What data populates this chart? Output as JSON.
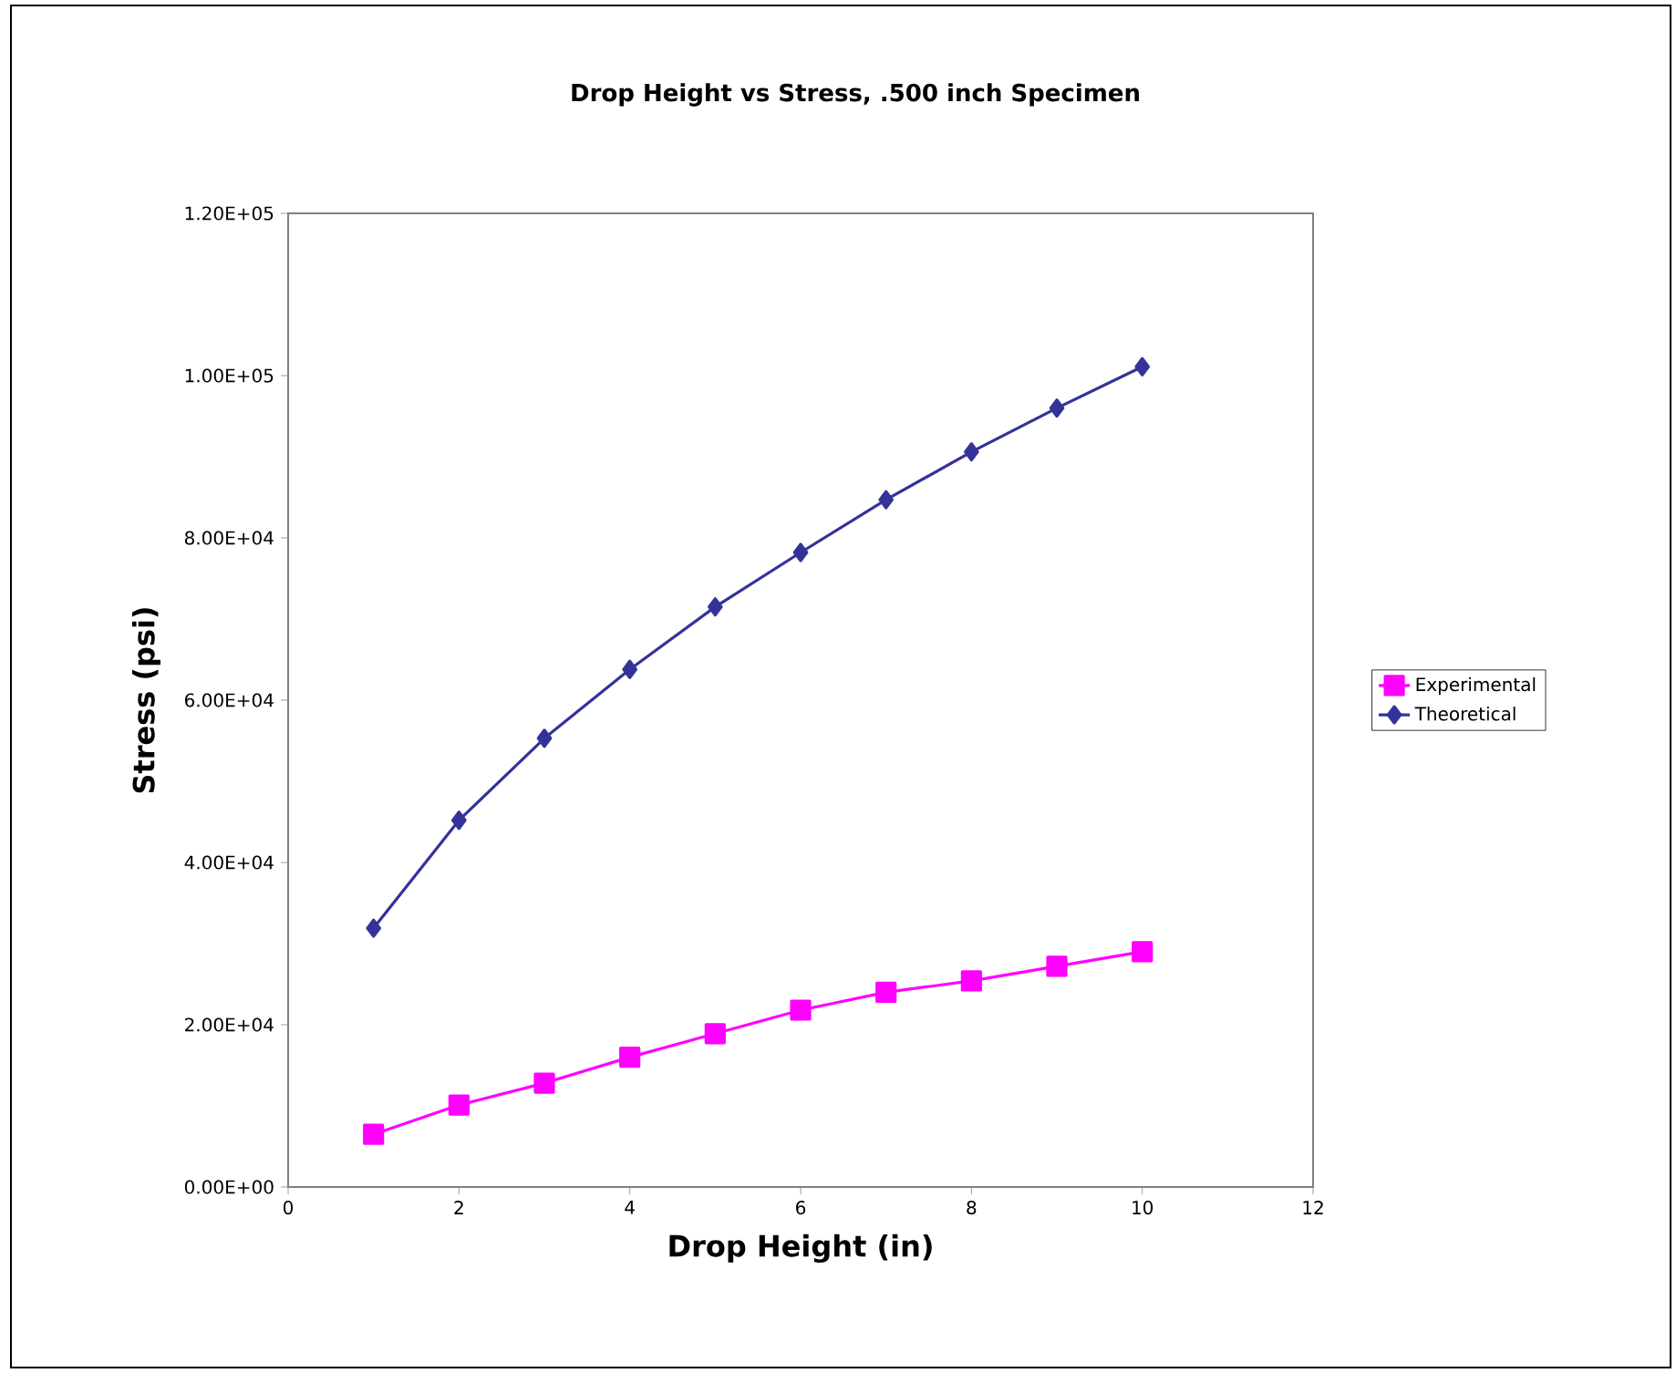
{
  "chart_data": {
    "type": "line",
    "title": "Drop Height vs Stress, .500 inch Specimen",
    "xlabel": "Drop Height (in)",
    "ylabel": "Stress (psi)",
    "xlim": [
      0,
      12
    ],
    "xticks": [
      0,
      2,
      4,
      6,
      8,
      10,
      12
    ],
    "ylim": [
      0,
      120000
    ],
    "yticks": [
      {
        "value": 0,
        "label": "0.00E+00"
      },
      {
        "value": 20000,
        "label": "2.00E+04"
      },
      {
        "value": 40000,
        "label": "4.00E+04"
      },
      {
        "value": 60000,
        "label": "6.00E+04"
      },
      {
        "value": 80000,
        "label": "8.00E+04"
      },
      {
        "value": 100000,
        "label": "1.00E+05"
      },
      {
        "value": 120000,
        "label": "1.20E+05"
      }
    ],
    "x": [
      1,
      2,
      3,
      4,
      5,
      6,
      7,
      8,
      9,
      10
    ],
    "grid": false,
    "legend": "right",
    "line_style": "solid",
    "series": [
      {
        "name": "Experimental",
        "color": "#ff00ff",
        "marker": "square",
        "values": [
          6500,
          10100,
          12800,
          16000,
          18900,
          21800,
          24000,
          25400,
          27200,
          29000
        ]
      },
      {
        "name": "Theoretical",
        "color": "#333399",
        "marker": "diamond",
        "values": [
          31900,
          45200,
          55300,
          63800,
          71500,
          78200,
          84700,
          90600,
          96000,
          101100
        ]
      }
    ]
  }
}
